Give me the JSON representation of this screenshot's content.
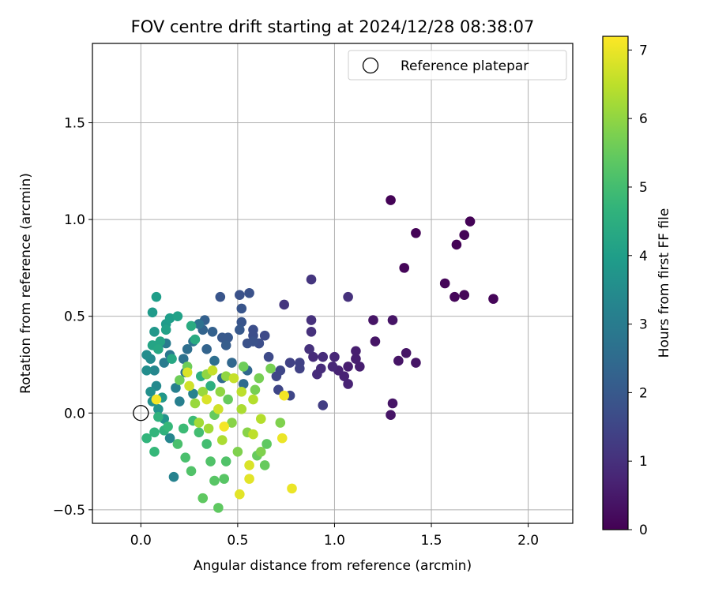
{
  "chart_data": {
    "type": "scatter",
    "title": "FOV centre drift starting at 2024/12/28 08:38:07",
    "xlabel": "Angular distance from reference (arcmin)",
    "ylabel": "Rotation from reference (arcmin)",
    "xlim": [
      -0.25,
      2.23
    ],
    "ylim": [
      -0.57,
      1.91
    ],
    "xticks": [
      0.0,
      0.5,
      1.0,
      1.5,
      2.0
    ],
    "xtick_labels": [
      "0.0",
      "0.5",
      "1.0",
      "1.5",
      "2.0"
    ],
    "yticks": [
      -0.5,
      0.0,
      0.5,
      1.0,
      1.5
    ],
    "ytick_labels": [
      "−0.5",
      "0.0",
      "0.5",
      "1.0",
      "1.5"
    ],
    "grid": true,
    "legend": {
      "placement": "top-right",
      "label": "Reference platepar"
    },
    "reference_point": {
      "x": 0.0,
      "y": 0.0,
      "marker": "open-circle"
    },
    "colorbar": {
      "label": "Hours from first FF file",
      "colormap": "viridis",
      "range": [
        0,
        7.2
      ],
      "ticks": [
        0,
        1,
        2,
        3,
        4,
        5,
        6,
        7
      ],
      "tick_labels": [
        "0",
        "1",
        "2",
        "3",
        "4",
        "5",
        "6",
        "7"
      ]
    },
    "points": [
      {
        "x": 1.29,
        "y": 1.1,
        "h": 0.05
      },
      {
        "x": 1.7,
        "y": 0.99,
        "h": 0.05
      },
      {
        "x": 1.42,
        "y": 0.93,
        "h": 0.05
      },
      {
        "x": 1.67,
        "y": 0.92,
        "h": 0.05
      },
      {
        "x": 1.63,
        "y": 0.87,
        "h": 0.05
      },
      {
        "x": 1.36,
        "y": 0.75,
        "h": 0.1
      },
      {
        "x": 1.57,
        "y": 0.67,
        "h": 0.1
      },
      {
        "x": 1.62,
        "y": 0.6,
        "h": 0.1
      },
      {
        "x": 1.67,
        "y": 0.61,
        "h": 0.1
      },
      {
        "x": 1.82,
        "y": 0.59,
        "h": 0.1
      },
      {
        "x": 1.3,
        "y": 0.48,
        "h": 0.4
      },
      {
        "x": 1.2,
        "y": 0.48,
        "h": 0.4
      },
      {
        "x": 1.21,
        "y": 0.37,
        "h": 0.4
      },
      {
        "x": 1.37,
        "y": 0.31,
        "h": 0.4
      },
      {
        "x": 1.33,
        "y": 0.27,
        "h": 0.4
      },
      {
        "x": 1.42,
        "y": 0.26,
        "h": 0.4
      },
      {
        "x": 1.29,
        "y": -0.01,
        "h": 0.4
      },
      {
        "x": 1.3,
        "y": 0.05,
        "h": 0.4
      },
      {
        "x": 1.11,
        "y": 0.32,
        "h": 0.6
      },
      {
        "x": 1.13,
        "y": 0.24,
        "h": 0.6
      },
      {
        "x": 1.11,
        "y": 0.28,
        "h": 0.6
      },
      {
        "x": 1.07,
        "y": 0.24,
        "h": 0.6
      },
      {
        "x": 1.05,
        "y": 0.19,
        "h": 0.7
      },
      {
        "x": 1.07,
        "y": 0.15,
        "h": 0.7
      },
      {
        "x": 1.02,
        "y": 0.22,
        "h": 0.7
      },
      {
        "x": 0.99,
        "y": 0.24,
        "h": 0.8
      },
      {
        "x": 1.0,
        "y": 0.29,
        "h": 0.8
      },
      {
        "x": 0.94,
        "y": 0.29,
        "h": 0.9
      },
      {
        "x": 0.89,
        "y": 0.29,
        "h": 0.9
      },
      {
        "x": 0.93,
        "y": 0.23,
        "h": 0.9
      },
      {
        "x": 0.91,
        "y": 0.2,
        "h": 0.9
      },
      {
        "x": 0.87,
        "y": 0.33,
        "h": 1.0
      },
      {
        "x": 0.88,
        "y": 0.42,
        "h": 1.0
      },
      {
        "x": 0.88,
        "y": 0.48,
        "h": 1.0
      },
      {
        "x": 1.07,
        "y": 0.6,
        "h": 1.0
      },
      {
        "x": 0.88,
        "y": 0.69,
        "h": 1.1
      },
      {
        "x": 0.74,
        "y": 0.56,
        "h": 1.1
      },
      {
        "x": 0.94,
        "y": 0.04,
        "h": 1.3
      },
      {
        "x": 0.82,
        "y": 0.26,
        "h": 1.4
      },
      {
        "x": 0.77,
        "y": 0.26,
        "h": 1.4
      },
      {
        "x": 0.82,
        "y": 0.23,
        "h": 1.4
      },
      {
        "x": 0.72,
        "y": 0.22,
        "h": 1.5
      },
      {
        "x": 0.7,
        "y": 0.19,
        "h": 1.5
      },
      {
        "x": 0.71,
        "y": 0.12,
        "h": 1.5
      },
      {
        "x": 0.77,
        "y": 0.09,
        "h": 1.5
      },
      {
        "x": 0.66,
        "y": 0.29,
        "h": 1.6
      },
      {
        "x": 0.61,
        "y": 0.36,
        "h": 1.6
      },
      {
        "x": 0.64,
        "y": 0.4,
        "h": 1.6
      },
      {
        "x": 0.58,
        "y": 0.43,
        "h": 1.7
      },
      {
        "x": 0.58,
        "y": 0.4,
        "h": 1.7
      },
      {
        "x": 0.61,
        "y": 0.36,
        "h": 1.7
      },
      {
        "x": 0.55,
        "y": 0.36,
        "h": 1.8
      },
      {
        "x": 0.58,
        "y": 0.37,
        "h": 1.8
      },
      {
        "x": 0.56,
        "y": 0.62,
        "h": 1.8
      },
      {
        "x": 0.51,
        "y": 0.61,
        "h": 1.8
      },
      {
        "x": 0.41,
        "y": 0.6,
        "h": 1.9
      },
      {
        "x": 0.52,
        "y": 0.54,
        "h": 1.9
      },
      {
        "x": 0.52,
        "y": 0.47,
        "h": 1.9
      },
      {
        "x": 0.51,
        "y": 0.43,
        "h": 2.0
      },
      {
        "x": 0.45,
        "y": 0.39,
        "h": 2.0
      },
      {
        "x": 0.42,
        "y": 0.39,
        "h": 2.0
      },
      {
        "x": 0.44,
        "y": 0.35,
        "h": 2.1
      },
      {
        "x": 0.37,
        "y": 0.42,
        "h": 2.2
      },
      {
        "x": 0.33,
        "y": 0.48,
        "h": 2.2
      },
      {
        "x": 0.32,
        "y": 0.43,
        "h": 2.3
      },
      {
        "x": 0.34,
        "y": 0.33,
        "h": 2.3
      },
      {
        "x": 0.47,
        "y": 0.26,
        "h": 2.4
      },
      {
        "x": 0.55,
        "y": 0.22,
        "h": 2.4
      },
      {
        "x": 0.53,
        "y": 0.15,
        "h": 2.5
      },
      {
        "x": 0.42,
        "y": 0.18,
        "h": 2.5
      },
      {
        "x": 0.38,
        "y": 0.27,
        "h": 2.6
      },
      {
        "x": 0.24,
        "y": 0.33,
        "h": 2.6
      },
      {
        "x": 0.22,
        "y": 0.28,
        "h": 2.7
      },
      {
        "x": 0.3,
        "y": 0.46,
        "h": 2.7
      },
      {
        "x": 0.27,
        "y": 0.37,
        "h": 2.8
      },
      {
        "x": 0.23,
        "y": 0.21,
        "h": 2.8
      },
      {
        "x": 0.15,
        "y": 0.3,
        "h": 2.9
      },
      {
        "x": 0.13,
        "y": 0.36,
        "h": 3.0
      },
      {
        "x": 0.12,
        "y": 0.26,
        "h": 3.0
      },
      {
        "x": 0.18,
        "y": 0.13,
        "h": 3.1
      },
      {
        "x": 0.2,
        "y": 0.06,
        "h": 3.1
      },
      {
        "x": 0.27,
        "y": 0.1,
        "h": 3.2
      },
      {
        "x": 0.17,
        "y": -0.33,
        "h": 3.2
      },
      {
        "x": 0.15,
        "y": -0.13,
        "h": 3.3
      },
      {
        "x": 0.07,
        "y": 0.22,
        "h": 3.3
      },
      {
        "x": 0.08,
        "y": 0.14,
        "h": 3.4
      },
      {
        "x": 0.05,
        "y": 0.28,
        "h": 3.4
      },
      {
        "x": 0.03,
        "y": 0.22,
        "h": 3.5
      },
      {
        "x": 0.03,
        "y": 0.3,
        "h": 3.5
      },
      {
        "x": 0.05,
        "y": 0.11,
        "h": 3.6
      },
      {
        "x": 0.06,
        "y": 0.06,
        "h": 3.6
      },
      {
        "x": 0.09,
        "y": 0.02,
        "h": 3.7
      },
      {
        "x": 0.12,
        "y": -0.03,
        "h": 3.7
      },
      {
        "x": 0.11,
        "y": 0.08,
        "h": 3.8
      },
      {
        "x": 0.07,
        "y": 0.42,
        "h": 3.8
      },
      {
        "x": 0.06,
        "y": 0.52,
        "h": 3.9
      },
      {
        "x": 0.13,
        "y": 0.46,
        "h": 3.9
      },
      {
        "x": 0.15,
        "y": 0.49,
        "h": 4.0
      },
      {
        "x": 0.08,
        "y": 0.6,
        "h": 4.0
      },
      {
        "x": 0.19,
        "y": 0.5,
        "h": 4.1
      },
      {
        "x": 0.13,
        "y": 0.43,
        "h": 4.1
      },
      {
        "x": 0.1,
        "y": 0.37,
        "h": 4.2
      },
      {
        "x": 0.06,
        "y": 0.35,
        "h": 4.2
      },
      {
        "x": 0.09,
        "y": 0.33,
        "h": 4.3
      },
      {
        "x": 0.16,
        "y": 0.28,
        "h": 4.3
      },
      {
        "x": 0.26,
        "y": 0.45,
        "h": 4.4
      },
      {
        "x": 0.28,
        "y": 0.38,
        "h": 4.4
      },
      {
        "x": 0.31,
        "y": 0.19,
        "h": 4.5
      },
      {
        "x": 0.36,
        "y": 0.14,
        "h": 4.5
      },
      {
        "x": 0.09,
        "y": -0.02,
        "h": 4.6
      },
      {
        "x": 0.12,
        "y": -0.09,
        "h": 4.6
      },
      {
        "x": 0.07,
        "y": -0.1,
        "h": 4.7
      },
      {
        "x": 0.03,
        "y": -0.13,
        "h": 4.7
      },
      {
        "x": 0.14,
        "y": -0.07,
        "h": 4.8
      },
      {
        "x": 0.07,
        "y": -0.2,
        "h": 4.8
      },
      {
        "x": 0.22,
        "y": -0.08,
        "h": 4.9
      },
      {
        "x": 0.27,
        "y": -0.04,
        "h": 4.9
      },
      {
        "x": 0.3,
        "y": -0.1,
        "h": 5.0
      },
      {
        "x": 0.34,
        "y": -0.16,
        "h": 5.0
      },
      {
        "x": 0.19,
        "y": -0.16,
        "h": 5.1
      },
      {
        "x": 0.23,
        "y": -0.23,
        "h": 5.1
      },
      {
        "x": 0.26,
        "y": -0.3,
        "h": 5.2
      },
      {
        "x": 0.36,
        "y": -0.25,
        "h": 5.2
      },
      {
        "x": 0.44,
        "y": -0.25,
        "h": 5.2
      },
      {
        "x": 0.43,
        "y": -0.34,
        "h": 5.3
      },
      {
        "x": 0.38,
        "y": -0.35,
        "h": 5.3
      },
      {
        "x": 0.32,
        "y": -0.44,
        "h": 5.4
      },
      {
        "x": 0.4,
        "y": -0.49,
        "h": 5.4
      },
      {
        "x": 0.65,
        "y": -0.16,
        "h": 5.4
      },
      {
        "x": 0.64,
        "y": -0.27,
        "h": 5.5
      },
      {
        "x": 0.6,
        "y": -0.22,
        "h": 5.5
      },
      {
        "x": 0.38,
        "y": -0.01,
        "h": 5.5
      },
      {
        "x": 0.45,
        "y": 0.07,
        "h": 5.5
      },
      {
        "x": 0.24,
        "y": 0.24,
        "h": 5.6
      },
      {
        "x": 0.2,
        "y": 0.17,
        "h": 5.6
      },
      {
        "x": 0.53,
        "y": 0.24,
        "h": 5.6
      },
      {
        "x": 0.59,
        "y": 0.12,
        "h": 5.7
      },
      {
        "x": 0.61,
        "y": 0.18,
        "h": 5.7
      },
      {
        "x": 0.67,
        "y": 0.23,
        "h": 5.7
      },
      {
        "x": 0.72,
        "y": -0.05,
        "h": 5.8
      },
      {
        "x": 0.62,
        "y": -0.2,
        "h": 5.8
      },
      {
        "x": 0.5,
        "y": -0.2,
        "h": 5.8
      },
      {
        "x": 0.47,
        "y": -0.05,
        "h": 5.9
      },
      {
        "x": 0.55,
        "y": -0.1,
        "h": 5.9
      },
      {
        "x": 0.41,
        "y": 0.11,
        "h": 6.0
      },
      {
        "x": 0.44,
        "y": 0.19,
        "h": 6.0
      },
      {
        "x": 0.34,
        "y": 0.2,
        "h": 6.0
      },
      {
        "x": 0.32,
        "y": 0.11,
        "h": 6.1
      },
      {
        "x": 0.28,
        "y": 0.05,
        "h": 6.1
      },
      {
        "x": 0.3,
        "y": -0.05,
        "h": 6.2
      },
      {
        "x": 0.35,
        "y": -0.08,
        "h": 6.2
      },
      {
        "x": 0.42,
        "y": -0.14,
        "h": 6.3
      },
      {
        "x": 0.52,
        "y": 0.02,
        "h": 6.3
      },
      {
        "x": 0.58,
        "y": 0.07,
        "h": 6.4
      },
      {
        "x": 0.62,
        "y": -0.03,
        "h": 6.4
      },
      {
        "x": 0.58,
        "y": -0.11,
        "h": 6.5
      },
      {
        "x": 0.52,
        "y": 0.11,
        "h": 6.5
      },
      {
        "x": 0.48,
        "y": 0.18,
        "h": 6.6
      },
      {
        "x": 0.37,
        "y": 0.22,
        "h": 6.6
      },
      {
        "x": 0.4,
        "y": 0.02,
        "h": 6.7
      },
      {
        "x": 0.25,
        "y": 0.14,
        "h": 6.7
      },
      {
        "x": 0.24,
        "y": 0.21,
        "h": 6.8
      },
      {
        "x": 0.34,
        "y": 0.07,
        "h": 6.8
      },
      {
        "x": 0.56,
        "y": -0.27,
        "h": 6.8
      },
      {
        "x": 0.56,
        "y": -0.34,
        "h": 6.9
      },
      {
        "x": 0.51,
        "y": -0.42,
        "h": 6.9
      },
      {
        "x": 0.78,
        "y": -0.39,
        "h": 7.0
      },
      {
        "x": 0.73,
        "y": -0.13,
        "h": 7.0
      },
      {
        "x": 0.74,
        "y": 0.09,
        "h": 7.1
      },
      {
        "x": 0.08,
        "y": 0.07,
        "h": 7.1
      },
      {
        "x": 0.43,
        "y": -0.07,
        "h": 7.1
      }
    ]
  }
}
